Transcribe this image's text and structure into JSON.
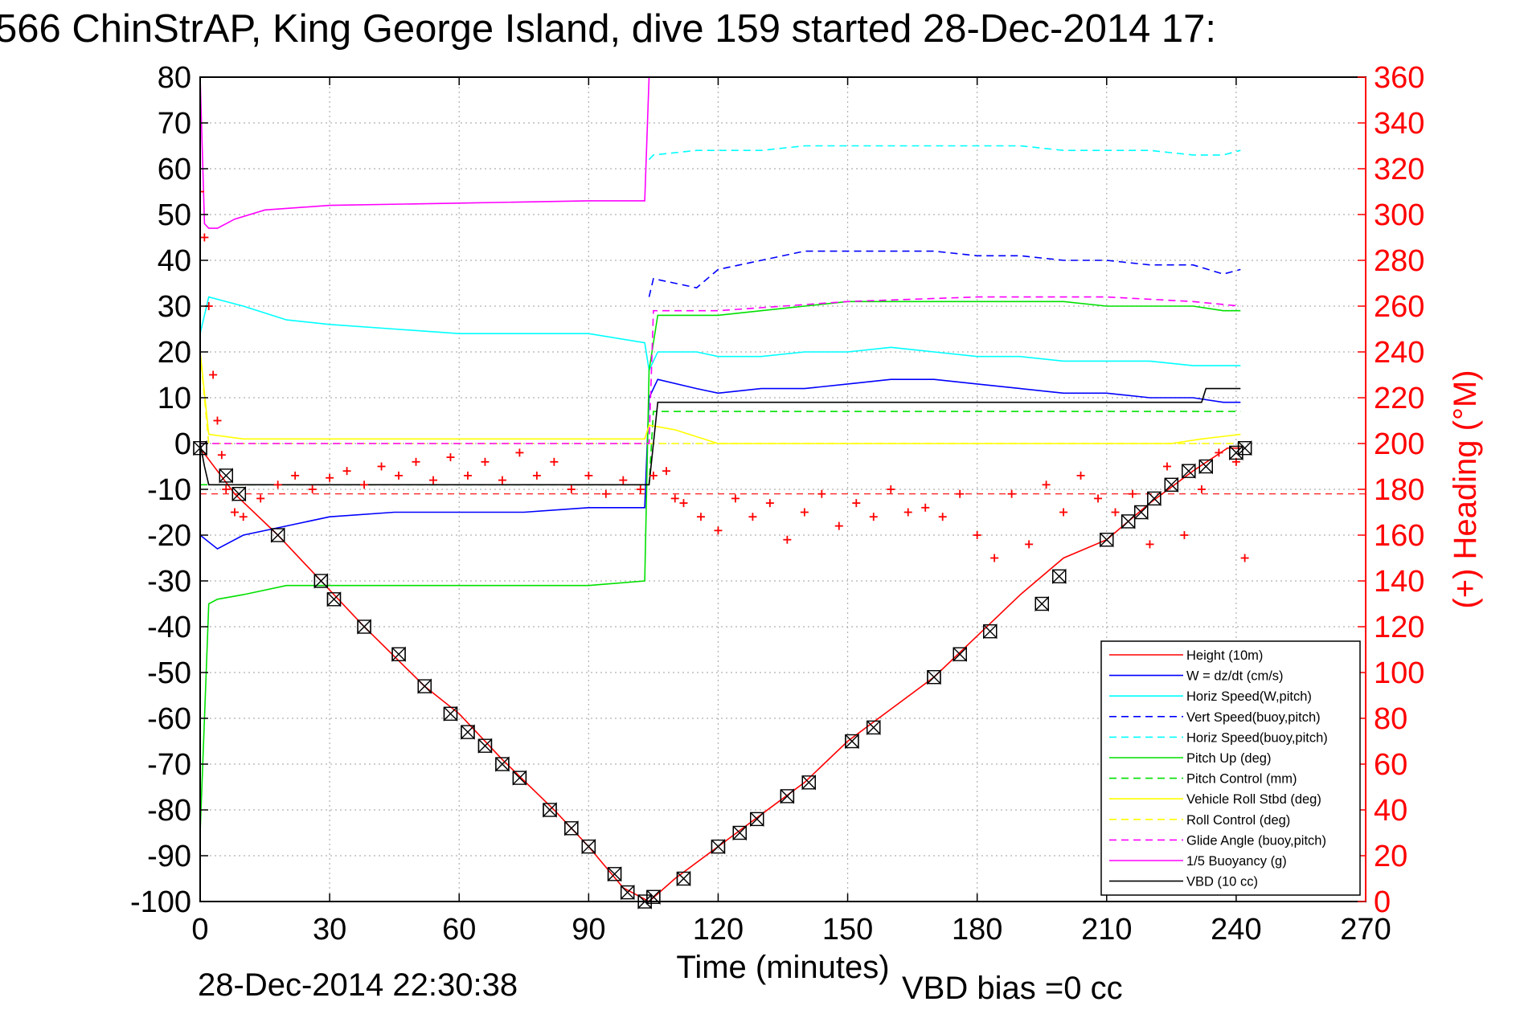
{
  "title": "566 ChinStrAP, King George Island, dive 159 started 28-Dec-2014 17:",
  "footer": {
    "timestamp": "28-Dec-2014 22:30:38",
    "vbd_bias": "VBD bias =0 cc"
  },
  "colors": {
    "red": "#ff0000",
    "blue": "#0000ff",
    "cyan": "#00ffff",
    "green": "#00e000",
    "yellow": "#ffff00",
    "magenta": "#ff00ff",
    "black": "#000000",
    "grid": "#b0b0b0"
  },
  "chart_data": {
    "type": "line",
    "title": "566 ChinStrAP, King George Island, dive 159 started 28-Dec-2014 17:",
    "xlabel": "Time (minutes)",
    "ylabel": "",
    "y2label": "(+) Heading (°M)",
    "xlim": [
      0,
      270
    ],
    "ylim": [
      -100,
      80
    ],
    "y2lim": [
      0,
      360
    ],
    "xticks": [
      0,
      30,
      60,
      90,
      120,
      150,
      180,
      210,
      240,
      270
    ],
    "yticks": [
      -100,
      -90,
      -80,
      -70,
      -60,
      -50,
      -40,
      -30,
      -20,
      -10,
      0,
      10,
      20,
      30,
      40,
      50,
      60,
      70,
      80
    ],
    "y2ticks": [
      0,
      20,
      40,
      60,
      80,
      100,
      120,
      140,
      160,
      180,
      200,
      220,
      240,
      260,
      280,
      300,
      320,
      340,
      360
    ],
    "grid": true,
    "legend_position": "bottom-right",
    "series": [
      {
        "name": "Height (10m)",
        "color": "#ff0000",
        "dash": "solid",
        "x": [
          0,
          8,
          18,
          28,
          38,
          52,
          60,
          70,
          82,
          90,
          98,
          104,
          110,
          120,
          130,
          140,
          150,
          160,
          170,
          180,
          190,
          200,
          210,
          220,
          230,
          238,
          241
        ],
        "y": [
          -1,
          -11,
          -20,
          -30,
          -40,
          -53,
          -59,
          -69,
          -80,
          -88,
          -97,
          -100,
          -95,
          -88,
          -81,
          -74,
          -65,
          -58,
          -51,
          -42,
          -33,
          -25,
          -21,
          -13,
          -6,
          -1,
          -1
        ]
      },
      {
        "name": "W = dz/dt (cm/s)",
        "color": "#0000ff",
        "dash": "solid",
        "x": [
          0,
          4,
          10,
          20,
          30,
          45,
          60,
          75,
          90,
          103,
          104,
          106,
          115,
          120,
          130,
          140,
          150,
          160,
          170,
          180,
          190,
          200,
          210,
          220,
          230,
          237,
          241
        ],
        "y": [
          -20,
          -23,
          -20,
          -18,
          -16,
          -15,
          -15,
          -15,
          -14,
          -14,
          10,
          14,
          12,
          11,
          12,
          12,
          13,
          14,
          14,
          13,
          12,
          11,
          11,
          10,
          10,
          9,
          9
        ]
      },
      {
        "name": "Horiz Speed(W,pitch)",
        "color": "#00ffff",
        "dash": "solid",
        "x": [
          0,
          2,
          10,
          20,
          30,
          45,
          60,
          75,
          90,
          103,
          104,
          106,
          115,
          120,
          130,
          140,
          150,
          160,
          170,
          180,
          190,
          200,
          210,
          220,
          230,
          237,
          241
        ],
        "y": [
          24,
          32,
          30,
          27,
          26,
          25,
          24,
          24,
          24,
          22,
          16,
          20,
          20,
          19,
          19,
          20,
          20,
          21,
          20,
          19,
          19,
          18,
          18,
          18,
          17,
          17,
          17
        ]
      },
      {
        "name": "Vert Speed(buoy,pitch)",
        "color": "#0000ff",
        "dash": "dashed",
        "x": [
          104,
          105,
          115,
          120,
          130,
          140,
          150,
          160,
          170,
          180,
          190,
          200,
          210,
          220,
          230,
          237,
          241
        ],
        "y": [
          32,
          36,
          34,
          38,
          40,
          42,
          42,
          42,
          42,
          41,
          41,
          40,
          40,
          39,
          39,
          37,
          38
        ]
      },
      {
        "name": "Horiz Speed(buoy,pitch)",
        "color": "#00ffff",
        "dash": "dashed",
        "x": [
          104,
          105,
          115,
          120,
          130,
          140,
          150,
          160,
          170,
          180,
          190,
          200,
          210,
          220,
          230,
          237,
          241
        ],
        "y": [
          62,
          63,
          64,
          64,
          64,
          65,
          65,
          65,
          65,
          65,
          65,
          64,
          64,
          64,
          63,
          63,
          64
        ]
      },
      {
        "name": "Pitch Up (deg)",
        "color": "#00e000",
        "dash": "solid",
        "x": [
          0,
          1,
          2,
          4,
          10,
          20,
          30,
          45,
          60,
          75,
          90,
          103,
          104,
          106,
          115,
          120,
          130,
          140,
          150,
          160,
          170,
          180,
          190,
          200,
          210,
          220,
          230,
          237,
          241
        ],
        "y": [
          -85,
          -60,
          -35,
          -34,
          -33,
          -31,
          -31,
          -31,
          -31,
          -31,
          -31,
          -30,
          16,
          28,
          28,
          28,
          29,
          30,
          31,
          31,
          31,
          31,
          31,
          31,
          30,
          30,
          30,
          29,
          29
        ]
      },
      {
        "name": "Pitch Control (mm)",
        "color": "#00e000",
        "dash": "dashed",
        "x": [
          0,
          2,
          104,
          105,
          241
        ],
        "y": [
          -9,
          -9,
          -9,
          7,
          7
        ]
      },
      {
        "name": "Vehicle Roll Stbd (deg)",
        "color": "#ffff00",
        "dash": "solid",
        "x": [
          0,
          2,
          10,
          30,
          60,
          90,
          103,
          104,
          110,
          120,
          150,
          180,
          210,
          218,
          225,
          232,
          241
        ],
        "y": [
          20,
          2,
          1,
          1,
          1,
          1,
          1,
          4,
          3,
          0,
          0,
          0,
          0,
          0,
          0,
          1,
          2
        ]
      },
      {
        "name": "Roll Control (deg)",
        "color": "#ffff00",
        "dash": "dashed",
        "x": [
          0,
          2,
          104,
          105,
          241
        ],
        "y": [
          20,
          0,
          0,
          0,
          0
        ]
      },
      {
        "name": "Glide Angle (buoy,pitch)",
        "color": "#ff00ff",
        "dash": "dashed",
        "x": [
          0,
          104,
          105,
          120,
          150,
          180,
          210,
          230,
          241
        ],
        "y": [
          0,
          0,
          29,
          29,
          31,
          32,
          32,
          31,
          30
        ]
      },
      {
        "name": "1/5 Buoyancy (g)",
        "color": "#ff00ff",
        "dash": "solid",
        "x": [
          0,
          1,
          2,
          4,
          8,
          15,
          30,
          60,
          90,
          102,
          103,
          104
        ],
        "y": [
          80,
          48,
          47,
          47,
          49,
          51,
          52,
          52.5,
          53,
          53,
          53,
          80
        ]
      },
      {
        "name": "VBD (10 cc)",
        "color": "#000000",
        "dash": "solid",
        "x": [
          0,
          1,
          2,
          103,
          104,
          106,
          120,
          150,
          180,
          210,
          232,
          233,
          241
        ],
        "y": [
          0,
          -5,
          -9,
          -9,
          -9,
          9,
          9,
          9,
          9,
          9,
          9,
          12,
          12
        ]
      }
    ],
    "heading": {
      "name": "(+) Heading",
      "color": "#ff0000",
      "marker": "+",
      "x": [
        0,
        1,
        2,
        3,
        4,
        5,
        6,
        8,
        10,
        14,
        18,
        22,
        26,
        30,
        34,
        38,
        42,
        46,
        50,
        54,
        58,
        62,
        66,
        70,
        74,
        78,
        82,
        86,
        90,
        94,
        98,
        102,
        105,
        108,
        110,
        112,
        116,
        120,
        124,
        128,
        132,
        136,
        140,
        144,
        148,
        152,
        156,
        160,
        164,
        168,
        172,
        176,
        180,
        184,
        188,
        192,
        196,
        200,
        204,
        208,
        212,
        216,
        220,
        224,
        228,
        232,
        236,
        240,
        242
      ],
      "y": [
        310,
        290,
        260,
        230,
        210,
        195,
        180,
        170,
        168,
        176,
        182,
        186,
        180,
        185,
        188,
        182,
        190,
        186,
        192,
        184,
        194,
        186,
        192,
        184,
        196,
        186,
        192,
        180,
        186,
        178,
        184,
        180,
        186,
        188,
        176,
        174,
        168,
        162,
        176,
        168,
        174,
        158,
        170,
        178,
        164,
        174,
        168,
        180,
        170,
        172,
        168,
        178,
        160,
        150,
        178,
        156,
        182,
        170,
        186,
        176,
        170,
        178,
        156,
        190,
        160,
        180,
        196,
        192,
        150
      ]
    },
    "heading_ref": {
      "name": "Heading reference",
      "y": 178
    },
    "markers": {
      "name": "Sample points",
      "x": [
        0,
        6,
        9,
        18,
        28,
        31,
        38,
        46,
        52,
        58,
        62,
        66,
        70,
        74,
        81,
        86,
        90,
        96,
        99,
        103,
        105,
        112,
        120,
        125,
        129,
        136,
        141,
        151,
        156,
        170,
        176,
        183,
        195,
        199,
        210,
        215,
        218,
        221,
        225,
        229,
        233,
        240,
        242
      ],
      "y": [
        -1,
        -7,
        -11,
        -20,
        -30,
        -34,
        -40,
        -46,
        -53,
        -59,
        -63,
        -66,
        -70,
        -73,
        -80,
        -84,
        -88,
        -94,
        -98,
        -100,
        -99,
        -95,
        -88,
        -85,
        -82,
        -77,
        -74,
        -65,
        -62,
        -51,
        -46,
        -41,
        -35,
        -29,
        -21,
        -17,
        -15,
        -12,
        -9,
        -6,
        -5,
        -2,
        -1
      ]
    }
  },
  "legend": {
    "items": [
      {
        "label": "Height (10m)",
        "color": "#ff0000",
        "dash": "solid"
      },
      {
        "label": "W = dz/dt (cm/s)",
        "color": "#0000ff",
        "dash": "solid"
      },
      {
        "label": "Horiz Speed(W,pitch)",
        "color": "#00ffff",
        "dash": "solid"
      },
      {
        "label": "Vert Speed(buoy,pitch)",
        "color": "#0000ff",
        "dash": "dashed"
      },
      {
        "label": "Horiz Speed(buoy,pitch)",
        "color": "#00ffff",
        "dash": "dashed"
      },
      {
        "label": "Pitch Up (deg)",
        "color": "#00e000",
        "dash": "solid"
      },
      {
        "label": "Pitch Control (mm)",
        "color": "#00e000",
        "dash": "dashed"
      },
      {
        "label": "Vehicle Roll Stbd (deg)",
        "color": "#ffff00",
        "dash": "solid"
      },
      {
        "label": "Roll Control (deg)",
        "color": "#ffff00",
        "dash": "dashed"
      },
      {
        "label": "Glide Angle (buoy,pitch)",
        "color": "#ff00ff",
        "dash": "dashed"
      },
      {
        "label": "1/5 Buoyancy (g)",
        "color": "#ff00ff",
        "dash": "solid"
      },
      {
        "label": "VBD (10 cc)",
        "color": "#000000",
        "dash": "solid"
      }
    ]
  }
}
